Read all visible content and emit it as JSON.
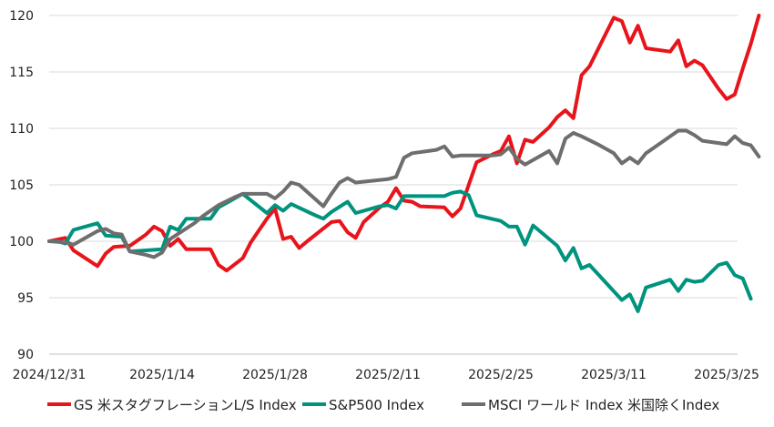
{
  "chart_data": {
    "type": "line",
    "ylim": [
      90,
      120
    ],
    "yticks": [
      90,
      95,
      100,
      105,
      110,
      115,
      120
    ],
    "x_tick_labels": [
      "2024/12/31",
      "2025/1/14",
      "2025/1/28",
      "2025/2/11",
      "2025/2/25",
      "2025/3/11",
      "2025/3/25"
    ],
    "x_tick_days": [
      0,
      14,
      28,
      42,
      56,
      70,
      84
    ],
    "x_start": "2024/12/31",
    "x_range_days": [
      0,
      87
    ],
    "grid": "horizontal",
    "legend_position": "bottom",
    "series": [
      {
        "name": "GS 米スタグフレーションL/S Index",
        "color": "#e8141b",
        "points": [
          [
            0,
            100
          ],
          [
            2,
            100.3
          ],
          [
            3,
            99.2
          ],
          [
            6,
            97.8
          ],
          [
            7,
            98.9
          ],
          [
            8,
            99.5
          ],
          [
            10,
            99.6
          ],
          [
            12,
            100.6
          ],
          [
            13,
            101.3
          ],
          [
            14,
            100.9
          ],
          [
            15,
            99.6
          ],
          [
            16,
            100.2
          ],
          [
            17,
            99.3
          ],
          [
            20,
            99.3
          ],
          [
            21,
            97.9
          ],
          [
            22,
            97.4
          ],
          [
            24,
            98.5
          ],
          [
            25,
            99.9
          ],
          [
            27,
            102.0
          ],
          [
            28,
            102.9
          ],
          [
            29,
            100.2
          ],
          [
            30,
            100.4
          ],
          [
            31,
            99.4
          ],
          [
            32,
            100.0
          ],
          [
            35,
            101.7
          ],
          [
            36,
            101.8
          ],
          [
            37,
            100.8
          ],
          [
            38,
            100.3
          ],
          [
            39,
            101.7
          ],
          [
            41,
            103.0
          ],
          [
            42,
            103.5
          ],
          [
            43,
            104.7
          ],
          [
            44,
            103.6
          ],
          [
            45,
            103.5
          ],
          [
            46,
            103.1
          ],
          [
            49,
            103.0
          ],
          [
            50,
            102.2
          ],
          [
            51,
            102.9
          ],
          [
            53,
            107.0
          ],
          [
            55,
            107.7
          ],
          [
            56,
            108.0
          ],
          [
            57,
            109.3
          ],
          [
            58,
            106.9
          ],
          [
            59,
            109.0
          ],
          [
            60,
            108.8
          ],
          [
            62,
            110.1
          ],
          [
            63,
            111.0
          ],
          [
            64,
            111.6
          ],
          [
            65,
            110.9
          ],
          [
            66,
            114.7
          ],
          [
            67,
            115.5
          ],
          [
            70,
            119.8
          ],
          [
            71,
            119.5
          ],
          [
            72,
            117.6
          ],
          [
            73,
            119.1
          ],
          [
            74,
            117.1
          ],
          [
            77,
            116.8
          ],
          [
            78,
            117.8
          ],
          [
            79,
            115.5
          ],
          [
            80,
            116.0
          ],
          [
            81,
            115.6
          ],
          [
            83,
            113.5
          ],
          [
            84,
            112.6
          ],
          [
            85,
            113.0
          ],
          [
            86,
            115.3
          ],
          [
            87,
            117.5
          ],
          [
            88,
            120.0
          ]
        ]
      },
      {
        "name": "S&P500 Index",
        "color": "#00937e",
        "points": [
          [
            0,
            100
          ],
          [
            1,
            100
          ],
          [
            2,
            99.8
          ],
          [
            3,
            101.0
          ],
          [
            6,
            101.6
          ],
          [
            7,
            100.5
          ],
          [
            9,
            100.4
          ],
          [
            10,
            99.1
          ],
          [
            14,
            99.3
          ],
          [
            15,
            101.3
          ],
          [
            16,
            101.0
          ],
          [
            17,
            102.0
          ],
          [
            20,
            102.0
          ],
          [
            21,
            103.0
          ],
          [
            24,
            104.2
          ],
          [
            27,
            102.5
          ],
          [
            28,
            103.2
          ],
          [
            29,
            102.7
          ],
          [
            30,
            103.3
          ],
          [
            33,
            102.3
          ],
          [
            34,
            102.0
          ],
          [
            35,
            102.6
          ],
          [
            37,
            103.5
          ],
          [
            38,
            102.5
          ],
          [
            41,
            103.1
          ],
          [
            42,
            103.2
          ],
          [
            43,
            102.9
          ],
          [
            44,
            104.0
          ],
          [
            49,
            104.0
          ],
          [
            50,
            104.3
          ],
          [
            51,
            104.4
          ],
          [
            52,
            104.1
          ],
          [
            53,
            102.3
          ],
          [
            56,
            101.8
          ],
          [
            57,
            101.3
          ],
          [
            58,
            101.3
          ],
          [
            59,
            99.7
          ],
          [
            60,
            101.4
          ],
          [
            63,
            99.6
          ],
          [
            64,
            98.3
          ],
          [
            65,
            99.4
          ],
          [
            66,
            97.6
          ],
          [
            67,
            97.9
          ],
          [
            71,
            94.8
          ],
          [
            72,
            95.3
          ],
          [
            73,
            93.8
          ],
          [
            74,
            95.9
          ],
          [
            77,
            96.6
          ],
          [
            78,
            95.6
          ],
          [
            79,
            96.6
          ],
          [
            80,
            96.4
          ],
          [
            81,
            96.5
          ],
          [
            83,
            97.9
          ],
          [
            84,
            98.1
          ],
          [
            85,
            97.0
          ],
          [
            86,
            96.7
          ],
          [
            87,
            94.9
          ]
        ]
      },
      {
        "name": "MSCI ワールド Index 米国除くIndex",
        "color": "#6e6e6e",
        "points": [
          [
            0,
            100
          ],
          [
            2,
            99.9
          ],
          [
            3,
            99.7
          ],
          [
            6,
            100.9
          ],
          [
            7,
            101.1
          ],
          [
            8,
            100.7
          ],
          [
            9,
            100.6
          ],
          [
            10,
            99.1
          ],
          [
            12,
            98.8
          ],
          [
            13,
            98.6
          ],
          [
            14,
            99.0
          ],
          [
            15,
            100.2
          ],
          [
            18,
            101.6
          ],
          [
            19,
            102.2
          ],
          [
            21,
            103.2
          ],
          [
            23,
            103.9
          ],
          [
            24,
            104.2
          ],
          [
            27,
            104.2
          ],
          [
            28,
            103.8
          ],
          [
            29,
            104.4
          ],
          [
            30,
            105.2
          ],
          [
            31,
            105.0
          ],
          [
            34,
            103.1
          ],
          [
            35,
            104.2
          ],
          [
            36,
            105.2
          ],
          [
            37,
            105.6
          ],
          [
            38,
            105.2
          ],
          [
            42,
            105.5
          ],
          [
            43,
            105.7
          ],
          [
            44,
            107.4
          ],
          [
            45,
            107.8
          ],
          [
            48,
            108.1
          ],
          [
            49,
            108.4
          ],
          [
            50,
            107.5
          ],
          [
            51,
            107.6
          ],
          [
            55,
            107.6
          ],
          [
            56,
            107.7
          ],
          [
            57,
            108.3
          ],
          [
            58,
            107.3
          ],
          [
            59,
            106.8
          ],
          [
            61,
            107.6
          ],
          [
            62,
            108.0
          ],
          [
            63,
            106.9
          ],
          [
            64,
            109.1
          ],
          [
            65,
            109.6
          ],
          [
            66,
            109.3
          ],
          [
            68,
            108.6
          ],
          [
            70,
            107.8
          ],
          [
            71,
            106.9
          ],
          [
            72,
            107.4
          ],
          [
            73,
            106.9
          ],
          [
            74,
            107.8
          ],
          [
            75,
            108.3
          ],
          [
            78,
            109.8
          ],
          [
            79,
            109.8
          ],
          [
            80,
            109.4
          ],
          [
            81,
            108.9
          ],
          [
            84,
            108.6
          ],
          [
            85,
            109.3
          ],
          [
            86,
            108.7
          ],
          [
            87,
            108.5
          ],
          [
            88,
            107.5
          ]
        ]
      }
    ]
  }
}
